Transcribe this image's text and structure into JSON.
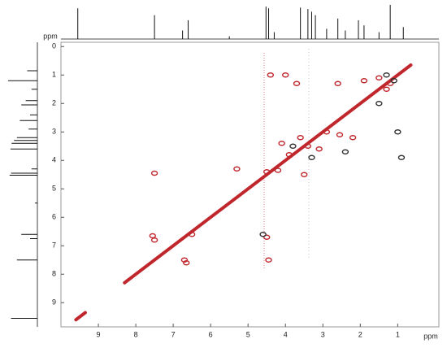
{
  "chart_data": {
    "type": "scatter",
    "xlabel": "ppm",
    "ylabel": "ppm",
    "xlim": [
      10,
      -0.1
    ],
    "ylim": [
      -0.15,
      9.85
    ],
    "xticks": [
      9,
      8,
      7,
      6,
      5,
      4,
      3,
      2,
      1
    ],
    "yticks": [
      0,
      1,
      2,
      3,
      4,
      5,
      6,
      7,
      8,
      9
    ],
    "diagonal": {
      "color": "#c0272d",
      "x": [
        9.6,
        9.35,
        null,
        8.3,
        0.65
      ],
      "y": [
        9.6,
        9.35,
        null,
        8.3,
        0.65
      ]
    },
    "series": [
      {
        "color": "#c0272d",
        "x": [
          7.55,
          7.5,
          6.7,
          6.65,
          4.45,
          4.5,
          5.3,
          4.2,
          3.9,
          3.6,
          3.4,
          3.1,
          2.6,
          2.55,
          1.9,
          1.5,
          1.3,
          1.2,
          4.0,
          3.7,
          4.4,
          2.2,
          6.5,
          7.5,
          4.5,
          3.5,
          2.9,
          4.1
        ],
        "y": [
          6.65,
          6.8,
          7.5,
          7.6,
          7.5,
          6.7,
          4.3,
          4.35,
          3.8,
          3.2,
          3.5,
          3.6,
          1.3,
          3.1,
          1.2,
          1.1,
          1.5,
          1.3,
          1.0,
          1.3,
          1.0,
          3.2,
          6.6,
          4.45,
          4.4,
          4.5,
          3.0,
          3.4
        ]
      },
      {
        "color": "#333333",
        "x": [
          1.0,
          1.1,
          0.9,
          3.8,
          2.4,
          1.3,
          3.3,
          1.5,
          4.6
        ],
        "y": [
          3.0,
          1.2,
          3.9,
          3.5,
          3.7,
          1.0,
          3.9,
          2.0,
          6.6
        ]
      }
    ],
    "projection": {
      "color": "#111111",
      "x": [
        9.55,
        7.5,
        6.75,
        6.6,
        5.5,
        4.52,
        4.45,
        4.3,
        3.6,
        3.4,
        3.3,
        3.2,
        2.9,
        2.6,
        2.4,
        2.05,
        1.9,
        1.5,
        1.2,
        0.85
      ],
      "values": [
        90,
        70,
        25,
        55,
        8,
        95,
        90,
        20,
        92,
        88,
        80,
        70,
        30,
        60,
        25,
        55,
        40,
        20,
        100,
        35
      ]
    }
  }
}
